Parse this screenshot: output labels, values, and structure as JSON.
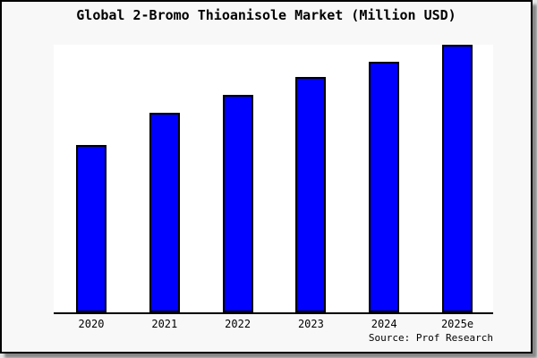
{
  "title": "Global 2-Bromo Thioanisole Market (Million USD)",
  "source": "Source: Prof Research",
  "colors": {
    "bar_fill": "#0000ff",
    "bar_edge": "#000000",
    "figure_background": "#f8f8f8",
    "plot_background": "#ffffff",
    "text": "#000000"
  },
  "chart_data": {
    "type": "bar",
    "title": "Global 2-Bromo Thioanisole Market (Million USD)",
    "categories": [
      "2020",
      "2021",
      "2022",
      "2023",
      "2024",
      "2025e"
    ],
    "values": [
      62.7,
      74.7,
      81.3,
      87.8,
      93.6,
      100
    ],
    "value_note": "y-axis is unlabeled in the chart; values are estimated relative units with 2025e = 100",
    "xlabel": "",
    "ylabel": "",
    "ylim": [
      0,
      100
    ],
    "grid": false,
    "legend": null,
    "y_axis_hidden": true,
    "annotation": "Source: Prof Research"
  }
}
